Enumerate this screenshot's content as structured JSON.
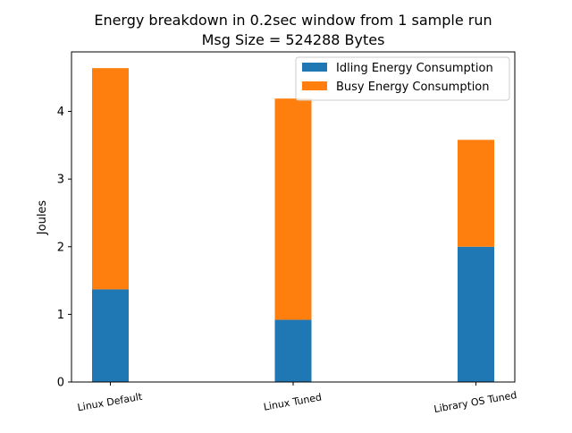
{
  "chart_data": {
    "type": "bar",
    "stacked": true,
    "title": "Energy breakdown in 0.2sec window from 1 sample run",
    "subtitle": "Msg Size = 524288 Bytes",
    "xlabel": "",
    "ylabel": "Joules",
    "categories": [
      "Linux Default",
      "Linux Tuned",
      "Library OS Tuned"
    ],
    "series": [
      {
        "name": "Idling Energy Consumption",
        "color": "#1f77b4",
        "values": [
          1.37,
          0.92,
          2.0
        ]
      },
      {
        "name": "Busy Energy Consumption",
        "color": "#ff7f0e",
        "values": [
          3.27,
          3.27,
          1.58
        ]
      }
    ],
    "ylim": [
      0,
      4.88
    ],
    "yticks": [
      0,
      1,
      2,
      3,
      4
    ],
    "grid": false,
    "legend_position": "top-right"
  }
}
